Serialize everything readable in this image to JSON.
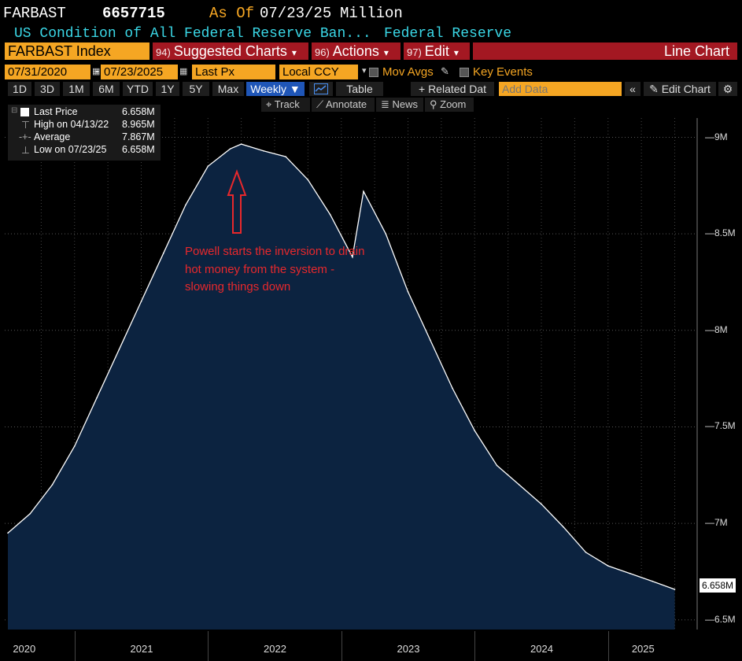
{
  "header": {
    "ticker": "FARBAST",
    "price": "6657715",
    "as_of_label": "As Of",
    "as_of_date": "07/23/25",
    "units": "Million"
  },
  "subheader": {
    "description": "US Condition of All Federal Reserve Ban...",
    "source": "Federal Reserve"
  },
  "toolbar": {
    "security": "FARBAST Index",
    "suggested_num": "94)",
    "suggested_label": "Suggested Charts",
    "actions_num": "96)",
    "actions_label": "Actions",
    "edit_num": "97)",
    "edit_label": "Edit",
    "chart_type": "Line Chart"
  },
  "settings": {
    "start_date": "07/31/2020",
    "separator": "-",
    "end_date": "07/23/2025",
    "field": "Last Px",
    "currency": "Local CCY",
    "mov_avgs": "Mov Avgs",
    "key_events": "Key Events"
  },
  "periods": [
    "1D",
    "3D",
    "1M",
    "6M",
    "YTD",
    "1Y",
    "5Y",
    "Max"
  ],
  "frequency": "Weekly",
  "table_label": "Table",
  "related_label": "Related Dat",
  "add_data_placeholder": "Add Data",
  "edit_chart_label": "Edit Chart",
  "tools": {
    "track": "Track",
    "annotate": "Annotate",
    "news": "News",
    "zoom": "Zoom"
  },
  "legend": {
    "last_label": "Last Price",
    "last_value": "6.658M",
    "high_label": "High on 04/13/22",
    "high_value": "8.965M",
    "avg_label": "Average",
    "avg_value": "7.867M",
    "low_label": "Low on 07/23/25",
    "low_value": "6.658M"
  },
  "annotation": "Powell starts the inversion to drain hot money from the system - slowing things down",
  "colors": {
    "accent": "#f5a623",
    "red": "#a31822",
    "cyan": "#3ad7e6",
    "area": "#0c2340",
    "annotation": "#e8282c"
  },
  "chart_data": {
    "type": "area",
    "x": [
      "2020-07",
      "2020-09",
      "2020-11",
      "2021-01",
      "2021-03",
      "2021-05",
      "2021-07",
      "2021-09",
      "2021-11",
      "2022-01",
      "2022-03",
      "2022-04",
      "2022-06",
      "2022-08",
      "2022-10",
      "2022-12",
      "2023-02",
      "2023-03",
      "2023-05",
      "2023-07",
      "2023-09",
      "2023-11",
      "2024-01",
      "2024-03",
      "2024-05",
      "2024-07",
      "2024-09",
      "2024-11",
      "2025-01",
      "2025-03",
      "2025-05",
      "2025-07"
    ],
    "series": [
      {
        "values": [
          6.95,
          7.05,
          7.2,
          7.4,
          7.65,
          7.9,
          8.15,
          8.4,
          8.65,
          8.85,
          8.94,
          8.965,
          8.93,
          8.9,
          8.78,
          8.6,
          8.38,
          8.72,
          8.5,
          8.2,
          7.95,
          7.7,
          7.48,
          7.3,
          7.2,
          7.1,
          6.98,
          6.85,
          6.78,
          6.74,
          6.7,
          6.658
        ]
      }
    ],
    "ylim": [
      6.45,
      9.1
    ],
    "yticks": [
      "6.5M",
      "7M",
      "7.5M",
      "8M",
      "8.5M",
      "9M"
    ],
    "xticks": [
      "2020",
      "2021",
      "2022",
      "2023",
      "2024",
      "2025"
    ],
    "last_value_label": "6.658M"
  }
}
